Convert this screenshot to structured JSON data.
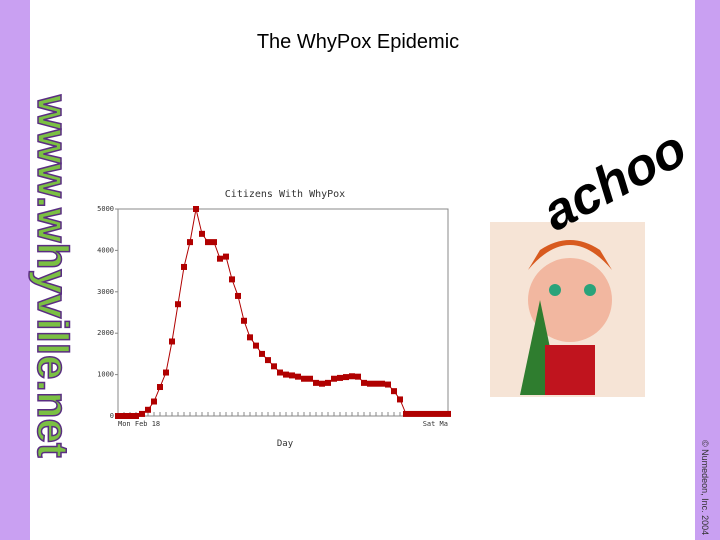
{
  "slide_title": "The WhyPox Epidemic",
  "logo": "www.whyville.net",
  "caption": "achoo",
  "copyright": "© Numedeon, Inc. 2004",
  "chart_data": {
    "type": "line",
    "title": "Citizens With WhyPox",
    "x_label": "Day",
    "categories": [
      "Mon Feb 18",
      null,
      null,
      null,
      null,
      null,
      null,
      null,
      null,
      null,
      null,
      null,
      null,
      null,
      null,
      null,
      null,
      null,
      null,
      null,
      null,
      null,
      null,
      null,
      null,
      null,
      null,
      null,
      null,
      null,
      null,
      null,
      null,
      null,
      null,
      null,
      null,
      null,
      null,
      null,
      null,
      null,
      null,
      null,
      null,
      null,
      null,
      null,
      null,
      null,
      null,
      null,
      null,
      null,
      null,
      "Sat Ma"
    ],
    "values": [
      0,
      0,
      0,
      0,
      50,
      150,
      350,
      700,
      1050,
      1800,
      2700,
      3600,
      4200,
      5000,
      4400,
      4200,
      4200,
      3800,
      3850,
      3300,
      2900,
      2300,
      1900,
      1700,
      1500,
      1350,
      1200,
      1050,
      1000,
      980,
      950,
      900,
      900,
      800,
      780,
      800,
      900,
      920,
      940,
      960,
      950,
      800,
      780,
      780,
      780,
      760,
      600,
      400,
      50,
      50,
      50,
      50,
      50,
      50,
      50,
      50
    ],
    "color": "#b00000",
    "ylim": [
      0,
      5000
    ],
    "yticks": [
      0,
      1000,
      2000,
      3000,
      4000,
      5000
    ],
    "grid": false
  }
}
